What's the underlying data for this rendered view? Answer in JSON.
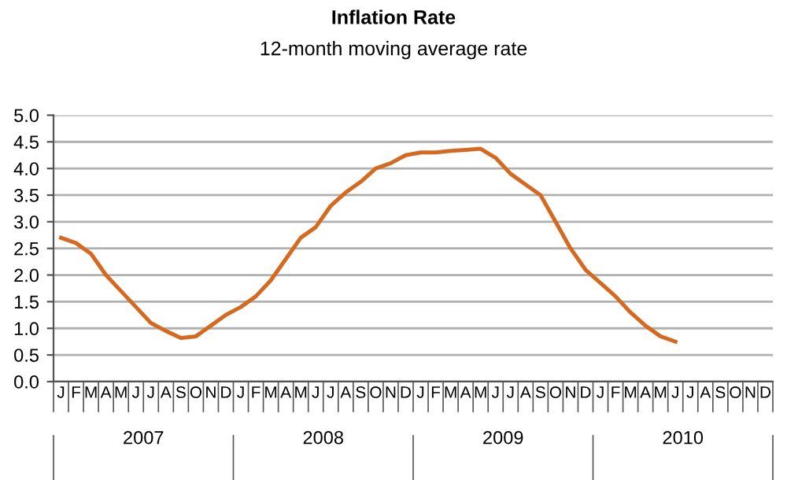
{
  "chart_data": {
    "type": "line",
    "title": "Inflation Rate",
    "subtitle": "12-month moving average rate",
    "categories": [
      "J",
      "F",
      "M",
      "A",
      "M",
      "J",
      "J",
      "A",
      "S",
      "O",
      "N",
      "D",
      "J",
      "F",
      "M",
      "A",
      "M",
      "J",
      "J",
      "A",
      "S",
      "O",
      "N",
      "D",
      "J",
      "F",
      "M",
      "A",
      "M",
      "J",
      "J",
      "A",
      "S",
      "O",
      "N",
      "D",
      "J",
      "F",
      "M",
      "A",
      "M",
      "J",
      "J",
      "A",
      "S",
      "O",
      "N",
      "D"
    ],
    "annotations": [
      "2007",
      "2008",
      "2009",
      "2010"
    ],
    "series": [
      {
        "color": "#d4691f",
        "values": [
          2.7,
          2.6,
          2.4,
          2.0,
          1.7,
          1.4,
          1.1,
          0.95,
          0.82,
          0.85,
          1.05,
          1.25,
          1.4,
          1.6,
          1.9,
          2.3,
          2.7,
          2.9,
          3.3,
          3.55,
          3.75,
          4.0,
          4.1,
          4.25,
          4.3,
          4.3,
          4.33,
          4.35,
          4.37,
          4.2,
          3.9,
          3.7,
          3.5,
          3.0,
          2.5,
          2.1,
          1.85,
          1.6,
          1.3,
          1.05,
          0.85,
          0.75,
          null,
          null,
          null,
          null,
          null,
          null
        ]
      }
    ],
    "ylim": [
      0,
      5
    ],
    "yticks": [
      {
        "value": 0,
        "label": "0.0"
      },
      {
        "value": 0.5,
        "label": "0.5"
      },
      {
        "value": 1,
        "label": "1.0"
      },
      {
        "value": 1.5,
        "label": "1.5"
      },
      {
        "value": 2,
        "label": "2.0"
      },
      {
        "value": 2.5,
        "label": "2.5"
      },
      {
        "value": 3,
        "label": "3.0"
      },
      {
        "value": 3.5,
        "label": "3.5"
      },
      {
        "value": 4,
        "label": "4.0"
      },
      {
        "value": 4.5,
        "label": "4.5"
      },
      {
        "value": 5,
        "label": "5.0"
      }
    ],
    "grid": "y",
    "legend": false,
    "marker": "none",
    "line_style": "solid"
  }
}
